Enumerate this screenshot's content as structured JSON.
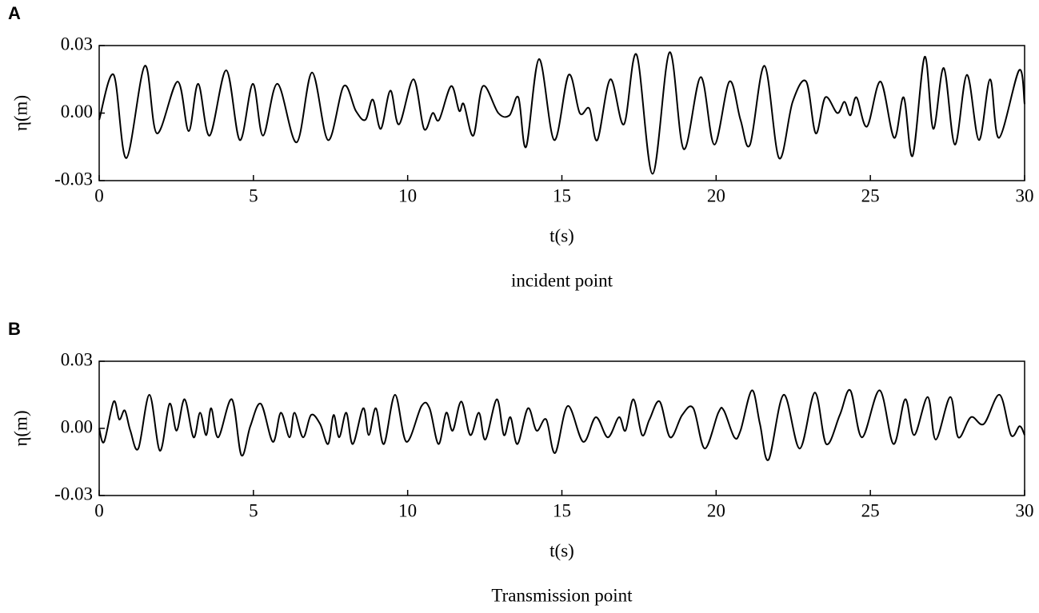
{
  "chart_data": [
    {
      "type": "line",
      "panel": "A",
      "caption": "incident point",
      "xlabel": "t(s)",
      "ylabel": "η(m)",
      "xlim": [
        0,
        30
      ],
      "xticks": [
        0,
        5,
        10,
        15,
        20,
        25,
        30
      ],
      "ylim": [
        -0.03,
        0.03
      ],
      "yticks": [
        -0.03,
        {
          "value": 0,
          "label": "0.00"
        },
        0.03
      ],
      "color": "#000000",
      "x": [
        0,
        0.47,
        0.88,
        1.48,
        1.87,
        2.54,
        2.9,
        3.21,
        3.58,
        4.12,
        4.56,
        4.98,
        5.31,
        5.78,
        6.4,
        6.9,
        7.42,
        7.93,
        8.32,
        8.63,
        8.87,
        9.13,
        9.44,
        9.72,
        10.19,
        10.53,
        10.81,
        11.02,
        11.41,
        11.67,
        11.82,
        12.13,
        12.44,
        12.94,
        13.3,
        13.59,
        13.84,
        14.26,
        14.75,
        15.22,
        15.58,
        15.89,
        16.15,
        16.57,
        17.01,
        17.42,
        17.94,
        18.49,
        18.95,
        19.5,
        19.94,
        20.43,
        20.79,
        21.1,
        21.57,
        22.04,
        22.48,
        22.92,
        23.23,
        23.54,
        23.93,
        24.16,
        24.35,
        24.55,
        24.89,
        25.33,
        25.77,
        26.08,
        26.37,
        26.76,
        27.04,
        27.38,
        27.74,
        28.13,
        28.52,
        28.88,
        29.17,
        29.82,
        30
      ],
      "values": [
        -0.003,
        0.017,
        -0.02,
        0.021,
        -0.009,
        0.014,
        -0.008,
        0.013,
        -0.01,
        0.019,
        -0.012,
        0.013,
        -0.01,
        0.013,
        -0.013,
        0.018,
        -0.012,
        0.012,
        0.001,
        -0.003,
        0.006,
        -0.007,
        0.01,
        -0.005,
        0.015,
        -0.007,
        0.0,
        -0.003,
        0.012,
        0.001,
        0.004,
        -0.01,
        0.012,
        0.0,
        -0.001,
        0.007,
        -0.015,
        0.024,
        -0.012,
        0.017,
        0.0,
        0.002,
        -0.012,
        0.015,
        -0.005,
        0.026,
        -0.027,
        0.027,
        -0.016,
        0.016,
        -0.014,
        0.014,
        -0.003,
        -0.014,
        0.021,
        -0.02,
        0.005,
        0.014,
        -0.009,
        0.007,
        0.0,
        0.005,
        -0.001,
        0.007,
        -0.006,
        0.014,
        -0.011,
        0.007,
        -0.019,
        0.025,
        -0.007,
        0.02,
        -0.014,
        0.017,
        -0.012,
        0.015,
        -0.011,
        0.019,
        0.004
      ]
    },
    {
      "type": "line",
      "panel": "B",
      "caption": "Transmission point",
      "xlabel": "t(s)",
      "ylabel": "η(m)",
      "xlim": [
        0,
        30
      ],
      "xticks": [
        0,
        5,
        10,
        15,
        20,
        25,
        30
      ],
      "ylim": [
        -0.03,
        0.03
      ],
      "yticks": [
        -0.03,
        {
          "value": 0,
          "label": "0.00"
        },
        0.03
      ],
      "color": "#000000",
      "x": [
        0,
        0.16,
        0.47,
        0.65,
        0.83,
        1.01,
        1.27,
        1.63,
        1.97,
        2.28,
        2.51,
        2.77,
        3.06,
        3.27,
        3.47,
        3.63,
        3.86,
        4.3,
        4.61,
        4.9,
        5.24,
        5.63,
        5.89,
        6.17,
        6.33,
        6.61,
        6.87,
        7.16,
        7.42,
        7.6,
        7.78,
        8.01,
        8.22,
        8.56,
        8.74,
        8.97,
        9.23,
        9.59,
        9.96,
        10.45,
        10.71,
        11.0,
        11.25,
        11.46,
        11.74,
        12.03,
        12.31,
        12.52,
        12.89,
        13.12,
        13.33,
        13.56,
        13.9,
        14.18,
        14.49,
        14.78,
        15.19,
        15.69,
        16.1,
        16.49,
        16.85,
        17.06,
        17.32,
        17.6,
        17.84,
        18.17,
        18.51,
        18.9,
        19.26,
        19.63,
        20.07,
        20.25,
        20.59,
        20.79,
        21.16,
        21.42,
        21.7,
        22.19,
        22.71,
        23.2,
        23.57,
        24.01,
        24.35,
        24.73,
        25.3,
        25.75,
        26.13,
        26.42,
        26.86,
        27.12,
        27.59,
        27.85,
        28.26,
        28.68,
        29.19,
        29.56,
        29.84,
        30
      ],
      "values": [
        0.0,
        -0.006,
        0.012,
        0.004,
        0.008,
        -0.001,
        -0.009,
        0.015,
        -0.01,
        0.011,
        -0.001,
        0.013,
        -0.004,
        0.007,
        -0.003,
        0.009,
        -0.004,
        0.013,
        -0.012,
        0.001,
        0.011,
        -0.006,
        0.007,
        -0.004,
        0.007,
        -0.004,
        0.006,
        0.002,
        -0.007,
        0.006,
        -0.004,
        0.007,
        -0.007,
        0.009,
        -0.003,
        0.009,
        -0.007,
        0.015,
        -0.006,
        0.01,
        0.009,
        -0.007,
        0.007,
        -0.001,
        0.012,
        -0.003,
        0.007,
        -0.005,
        0.013,
        -0.003,
        0.005,
        -0.007,
        0.009,
        -0.001,
        0.004,
        -0.011,
        0.01,
        -0.006,
        0.005,
        -0.004,
        0.005,
        -0.001,
        0.013,
        -0.003,
        0.004,
        0.012,
        -0.004,
        0.006,
        0.009,
        -0.009,
        0.007,
        0.008,
        -0.004,
        -0.001,
        0.017,
        0.002,
        -0.014,
        0.015,
        -0.009,
        0.016,
        -0.007,
        0.006,
        0.017,
        -0.004,
        0.017,
        -0.007,
        0.013,
        -0.003,
        0.014,
        -0.005,
        0.014,
        -0.004,
        0.005,
        0.002,
        0.015,
        -0.003,
        0.001,
        -0.003
      ]
    }
  ]
}
